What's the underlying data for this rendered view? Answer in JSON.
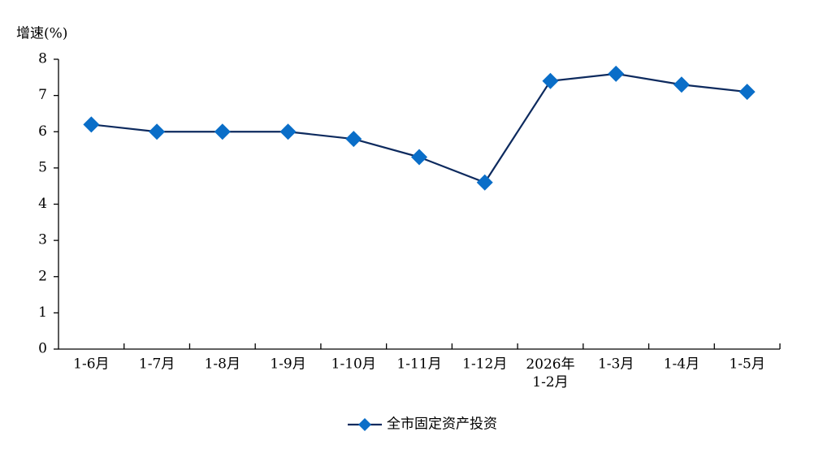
{
  "chart_data": {
    "type": "line",
    "y_label": "增速(%)",
    "categories": [
      "1-6月",
      "1-7月",
      "1-8月",
      "1-9月",
      "1-10月",
      "1-11月",
      "1-12月",
      "2026年\n1-2月",
      "1-3月",
      "1-4月",
      "1-5月"
    ],
    "series": [
      {
        "name": "全市固定资产投资",
        "color": "#0d2a5e",
        "marker_color": "#0a6ec8",
        "values": [
          6.2,
          6.0,
          6.0,
          6.0,
          5.8,
          5.3,
          4.6,
          7.4,
          7.6,
          7.3,
          7.1
        ]
      }
    ],
    "ylim": [
      0,
      8
    ],
    "yticks": [
      0,
      1,
      2,
      3,
      4,
      5,
      6,
      7,
      8
    ],
    "grid": false,
    "legend": "bottom"
  }
}
